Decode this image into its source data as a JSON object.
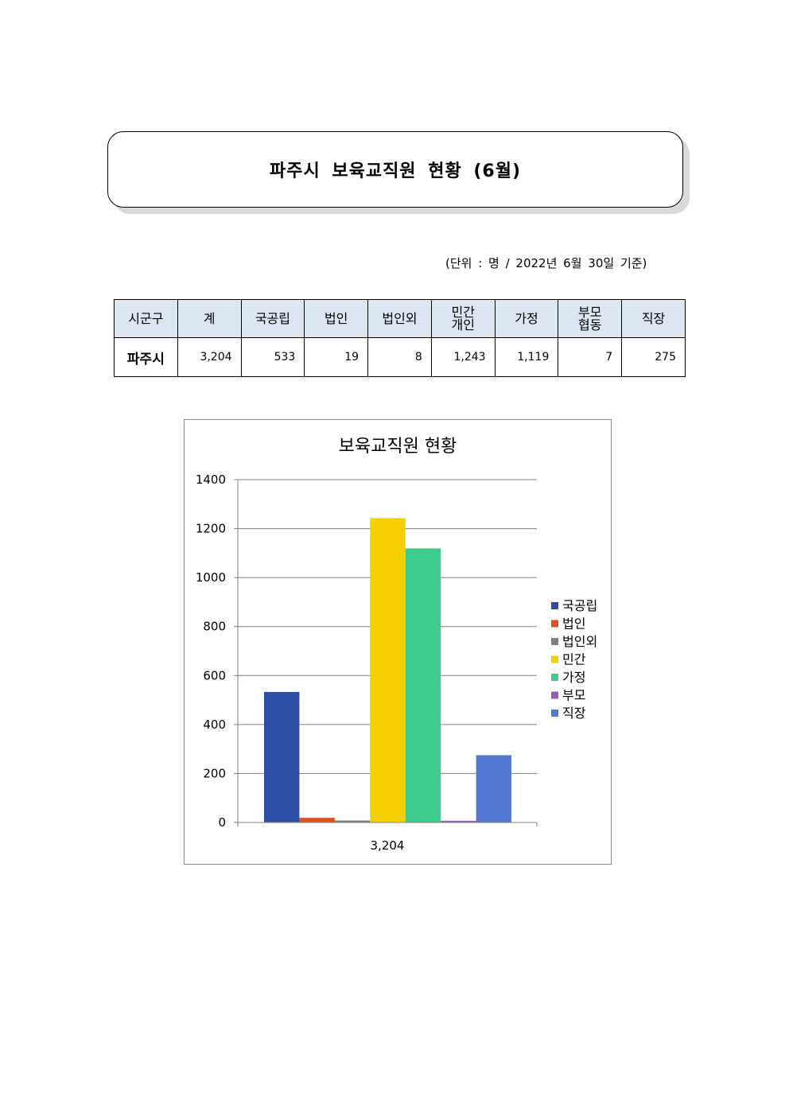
{
  "title": "파주시 보육교직원 현황 (6월)",
  "unit_note": "(단위 : 명 / 2022년 6월 30일 기준)",
  "table": {
    "headers": [
      {
        "lines": [
          "시군구"
        ]
      },
      {
        "lines": [
          "계"
        ]
      },
      {
        "lines": [
          "국공립"
        ]
      },
      {
        "lines": [
          "법인"
        ]
      },
      {
        "lines": [
          "법인외"
        ]
      },
      {
        "lines": [
          "민간",
          "개인"
        ]
      },
      {
        "lines": [
          "가정"
        ]
      },
      {
        "lines": [
          "부모",
          "협동"
        ]
      },
      {
        "lines": [
          "직장"
        ]
      }
    ],
    "row": [
      "파주시",
      "3,204",
      "533",
      "19",
      "8",
      "1,243",
      "1,119",
      "7",
      "275"
    ]
  },
  "chart_data": {
    "type": "bar",
    "title": "보육교직원 현황",
    "categories": [
      "3,204"
    ],
    "series": [
      {
        "name": "국공립",
        "values": [
          533
        ],
        "color": "#2e4ea3"
      },
      {
        "name": "법인",
        "values": [
          19
        ],
        "color": "#d9531e"
      },
      {
        "name": "법인외",
        "values": [
          8
        ],
        "color": "#7f7f7f"
      },
      {
        "name": "민간",
        "values": [
          1243
        ],
        "color": "#f5cf00"
      },
      {
        "name": "가정",
        "values": [
          1119
        ],
        "color": "#3ecb8e"
      },
      {
        "name": "부모",
        "values": [
          7
        ],
        "color": "#9b59b6"
      },
      {
        "name": "직장",
        "values": [
          275
        ],
        "color": "#5578d2"
      }
    ],
    "ylim": [
      0,
      1400
    ],
    "yticks": [
      0,
      200,
      400,
      600,
      800,
      1000,
      1200,
      1400
    ],
    "grid": true,
    "legend": "right"
  }
}
